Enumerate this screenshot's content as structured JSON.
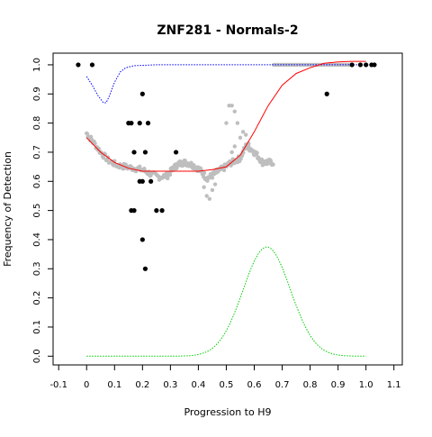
{
  "chart_data": {
    "type": "scatter",
    "title": "ZNF281 - Normals-2",
    "xlabel": "Progression to H9",
    "ylabel": "Frequency of Detection",
    "xlim": [
      -0.12,
      1.13
    ],
    "ylim": [
      -0.03,
      1.04
    ],
    "xticks": [
      "-0.1",
      "0",
      "0.1",
      "0.2",
      "0.3",
      "0.4",
      "0.5",
      "0.6",
      "0.7",
      "0.8",
      "0.9",
      "1.0",
      "1.1"
    ],
    "xtick_values": [
      -0.1,
      0,
      0.1,
      0.2,
      0.3,
      0.4,
      0.5,
      0.6,
      0.7,
      0.8,
      0.9,
      1.0,
      1.1
    ],
    "yticks": [
      "0.0",
      "0.1",
      "0.2",
      "0.3",
      "0.4",
      "0.5",
      "0.6",
      "0.7",
      "0.8",
      "0.9",
      "1.0"
    ],
    "ytick_values": [
      0,
      0.1,
      0.2,
      0.3,
      0.4,
      0.5,
      0.6,
      0.7,
      0.8,
      0.9,
      1.0
    ],
    "grid": false,
    "legend": "none",
    "colors": {
      "black_points": "#000000",
      "gray_points": "#bebebe",
      "red_curve": "#ff0000",
      "blue_curve": "#0000ff",
      "green_curve": "#00cc00"
    },
    "black_points": [
      [
        -0.03,
        1.0
      ],
      [
        0.02,
        1.0
      ],
      [
        0.15,
        0.8
      ],
      [
        0.16,
        0.8
      ],
      [
        0.19,
        0.8
      ],
      [
        0.22,
        0.8
      ],
      [
        0.2,
        0.9
      ],
      [
        0.17,
        0.7
      ],
      [
        0.21,
        0.7
      ],
      [
        0.32,
        0.7
      ],
      [
        0.19,
        0.6
      ],
      [
        0.2,
        0.6
      ],
      [
        0.23,
        0.6
      ],
      [
        0.16,
        0.5
      ],
      [
        0.17,
        0.5
      ],
      [
        0.25,
        0.5
      ],
      [
        0.27,
        0.5
      ],
      [
        0.2,
        0.4
      ],
      [
        0.21,
        0.3
      ],
      [
        0.86,
        0.9
      ],
      [
        0.95,
        1.0
      ],
      [
        0.98,
        1.0
      ],
      [
        1.0,
        1.0
      ],
      [
        1.02,
        1.0
      ],
      [
        1.03,
        1.0
      ]
    ],
    "gray_trend": [
      [
        0.0,
        0.765
      ],
      [
        0.02,
        0.74
      ],
      [
        0.05,
        0.7
      ],
      [
        0.08,
        0.67
      ],
      [
        0.11,
        0.655
      ],
      [
        0.14,
        0.65
      ],
      [
        0.17,
        0.645
      ],
      [
        0.2,
        0.64
      ],
      [
        0.23,
        0.625
      ],
      [
        0.26,
        0.615
      ],
      [
        0.29,
        0.62
      ],
      [
        0.31,
        0.645
      ],
      [
        0.33,
        0.66
      ],
      [
        0.35,
        0.665
      ],
      [
        0.37,
        0.66
      ],
      [
        0.39,
        0.65
      ],
      [
        0.41,
        0.635
      ],
      [
        0.43,
        0.61
      ],
      [
        0.45,
        0.62
      ],
      [
        0.47,
        0.635
      ],
      [
        0.49,
        0.645
      ],
      [
        0.51,
        0.66
      ],
      [
        0.53,
        0.67
      ],
      [
        0.55,
        0.68
      ],
      [
        0.57,
        0.72
      ],
      [
        0.59,
        0.71
      ],
      [
        0.61,
        0.69
      ],
      [
        0.63,
        0.665
      ],
      [
        0.65,
        0.665
      ],
      [
        0.67,
        0.665
      ]
    ],
    "gray_top_segment": [
      0.67,
      0.95,
      1.0
    ],
    "gray_extra": [
      [
        0.43,
        0.55
      ],
      [
        0.44,
        0.54
      ],
      [
        0.45,
        0.57
      ],
      [
        0.46,
        0.59
      ],
      [
        0.42,
        0.58
      ],
      [
        0.5,
        0.8
      ],
      [
        0.51,
        0.86
      ],
      [
        0.52,
        0.86
      ],
      [
        0.53,
        0.84
      ],
      [
        0.54,
        0.8
      ],
      [
        0.56,
        0.77
      ],
      [
        0.57,
        0.76
      ],
      [
        0.55,
        0.75
      ],
      [
        0.52,
        0.7
      ],
      [
        0.53,
        0.72
      ],
      [
        0.58,
        0.73
      ]
    ],
    "red_curve": [
      [
        0.0,
        0.75
      ],
      [
        0.05,
        0.7
      ],
      [
        0.1,
        0.665
      ],
      [
        0.15,
        0.645
      ],
      [
        0.2,
        0.635
      ],
      [
        0.3,
        0.635
      ],
      [
        0.4,
        0.635
      ],
      [
        0.45,
        0.64
      ],
      [
        0.5,
        0.65
      ],
      [
        0.55,
        0.69
      ],
      [
        0.6,
        0.77
      ],
      [
        0.65,
        0.86
      ],
      [
        0.7,
        0.93
      ],
      [
        0.75,
        0.97
      ],
      [
        0.8,
        0.99
      ],
      [
        0.85,
        1.005
      ],
      [
        0.9,
        1.01
      ],
      [
        0.95,
        1.012
      ],
      [
        1.0,
        1.012
      ]
    ],
    "blue_curve": [
      [
        0.0,
        0.96
      ],
      [
        0.02,
        0.93
      ],
      [
        0.04,
        0.895
      ],
      [
        0.06,
        0.87
      ],
      [
        0.07,
        0.87
      ],
      [
        0.08,
        0.89
      ],
      [
        0.1,
        0.94
      ],
      [
        0.12,
        0.975
      ],
      [
        0.14,
        0.99
      ],
      [
        0.17,
        0.997
      ],
      [
        0.25,
        1.0
      ],
      [
        0.5,
        1.0
      ],
      [
        1.0,
        1.0
      ]
    ],
    "green_curve": {
      "mean": 0.645,
      "sd": 0.085,
      "peak": 0.375,
      "x_range": [
        0.0,
        1.0
      ]
    }
  }
}
